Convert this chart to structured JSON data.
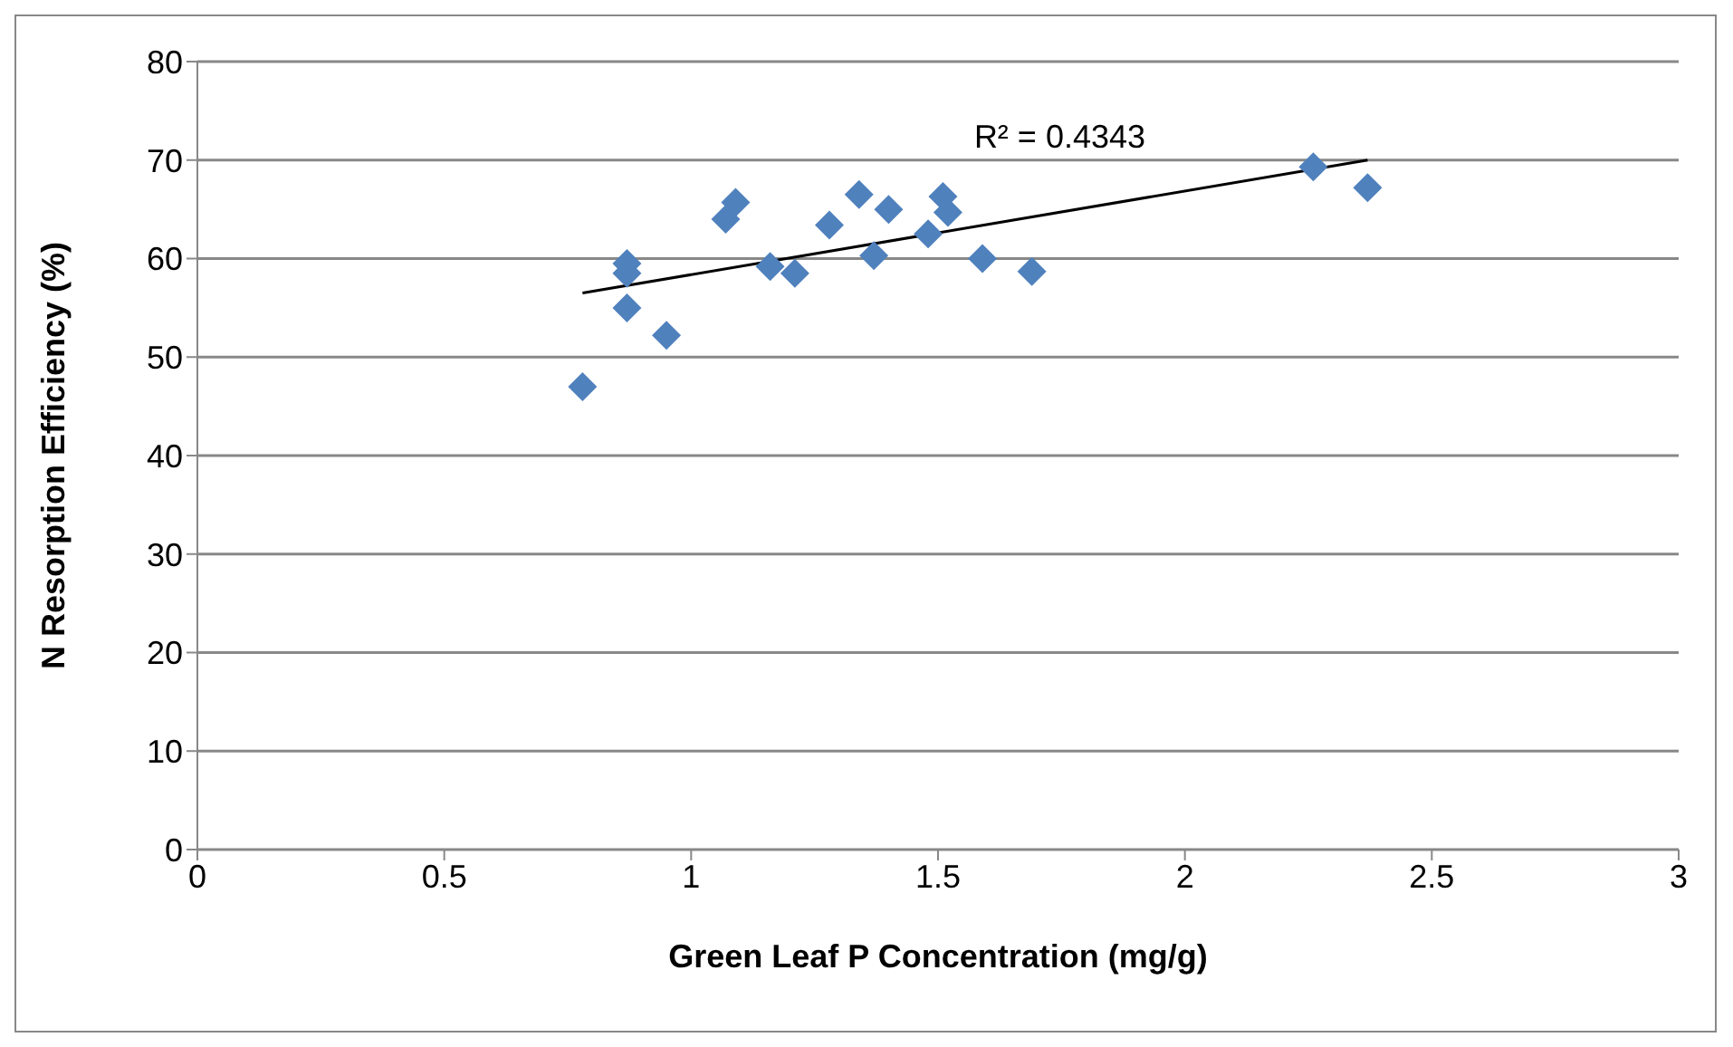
{
  "chart_data": {
    "type": "scatter",
    "xlabel": "Green Leaf P Concentration (mg/g)",
    "ylabel": "N Resorption Efficiency (%)",
    "xlim": [
      0,
      3
    ],
    "xticks": [
      0,
      0.5,
      1,
      1.5,
      2,
      2.5,
      3
    ],
    "ylim": [
      0,
      80
    ],
    "yticks": [
      0,
      10,
      20,
      30,
      40,
      50,
      60,
      70,
      80
    ],
    "grid": "y",
    "series": [
      {
        "color": "#4f81bd",
        "marker": "diamond",
        "x": [
          0.78,
          0.87,
          0.87,
          0.87,
          0.95,
          1.07,
          1.09,
          1.16,
          1.21,
          1.28,
          1.34,
          1.37,
          1.4,
          1.48,
          1.51,
          1.52,
          1.59,
          1.69,
          2.26,
          2.37
        ],
        "values": [
          47,
          59.5,
          58.5,
          55,
          52.2,
          64,
          65.7,
          59.2,
          58.5,
          63.4,
          66.5,
          60.3,
          65,
          62.5,
          66.3,
          64.7,
          60,
          58.7,
          69.3,
          67.2
        ]
      },
      {
        "type": "line",
        "color": "#000000",
        "marker": "none",
        "x": [
          0.78,
          2.37
        ],
        "values": [
          56.5,
          70
        ]
      }
    ],
    "annotations": [
      "R² = 0.4343"
    ]
  }
}
